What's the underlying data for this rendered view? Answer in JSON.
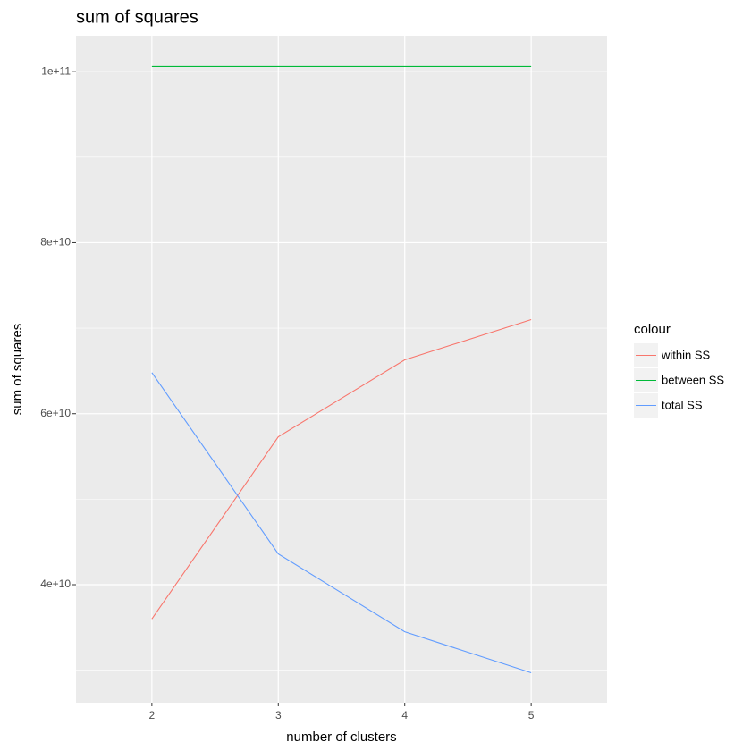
{
  "chart_data": {
    "type": "line",
    "title": "sum of squares",
    "x_label": "number of clusters",
    "y_label": "sum of squares",
    "x": [
      2,
      3,
      4,
      5
    ],
    "series": [
      {
        "name": "within SS",
        "color": "#f8766d",
        "values": [
          36000000000,
          57300000000,
          66300000000,
          71000000000
        ]
      },
      {
        "name": "between SS",
        "color": "#00ba38",
        "values": [
          100600000000,
          100600000000,
          100600000000,
          100600000000
        ]
      },
      {
        "name": "total SS",
        "color": "#619cff",
        "values": [
          64800000000,
          43600000000,
          34500000000,
          29700000000
        ]
      }
    ],
    "xlim": [
      1.4,
      5.6
    ],
    "xticks": [
      2,
      3,
      4,
      5
    ],
    "ylim": [
      26200000000,
      104200000000
    ],
    "yticks": [
      {
        "value": 40000000000,
        "label": "4e+10"
      },
      {
        "value": 60000000000,
        "label": "6e+10"
      },
      {
        "value": 80000000000,
        "label": "8e+10"
      },
      {
        "value": 100000000000,
        "label": "1e+11"
      }
    ],
    "yminorticks": [
      30000000000,
      50000000000,
      70000000000,
      90000000000
    ],
    "grid": true,
    "legend_title": "colour",
    "legend_position": "right"
  }
}
